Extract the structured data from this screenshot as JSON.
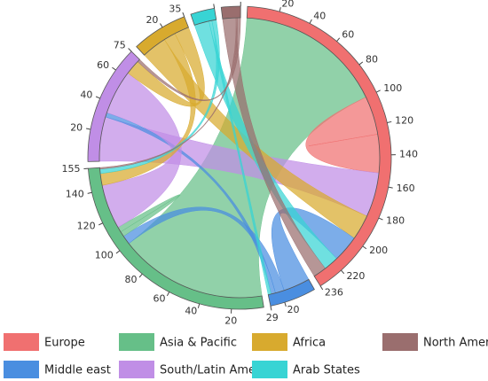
{
  "chart_data": {
    "type": "chord",
    "nodes": [
      {
        "name": "Europe",
        "color": "#f07070",
        "total": 236,
        "ticks": [
          20,
          40,
          60,
          80,
          100,
          120,
          140,
          160,
          180,
          200,
          220
        ]
      },
      {
        "name": "Middle east",
        "color": "#4a8ee0",
        "total": 29,
        "ticks": [
          20
        ]
      },
      {
        "name": "Asia & Pacific",
        "color": "#66bf88",
        "total": 155,
        "ticks": [
          20,
          40,
          60,
          80,
          100,
          120,
          140
        ]
      },
      {
        "name": "South/Latin America",
        "color": "#c08ee6",
        "total": 75,
        "ticks": [
          20,
          40,
          60
        ]
      },
      {
        "name": "Africa",
        "color": "#d8aa2e",
        "total": 35,
        "ticks": [
          20
        ]
      },
      {
        "name": "Arab States",
        "color": "#38d4d4",
        "total": 15,
        "ticks": []
      },
      {
        "name": "North America",
        "color": "#9a6e6e",
        "total": 12,
        "ticks": []
      }
    ],
    "links": [
      {
        "source": "Asia & Pacific",
        "target": "Europe",
        "value": 100
      },
      {
        "source": "Europe",
        "target": "Europe",
        "value": 26
      },
      {
        "source": "South/Latin America",
        "target": "Europe",
        "value": 30
      },
      {
        "source": "Africa",
        "target": "Europe",
        "value": 17
      },
      {
        "source": "Middle east",
        "target": "Europe",
        "value": 18
      },
      {
        "source": "Arab States",
        "target": "Europe",
        "value": 10
      },
      {
        "source": "North America",
        "target": "Europe",
        "value": 9
      },
      {
        "source": "Middle east",
        "target": "Asia & Pacific",
        "value": 6
      },
      {
        "source": "Middle east",
        "target": "South/Latin America",
        "value": 3
      },
      {
        "source": "Arab States",
        "target": "Middle east",
        "value": 2
      },
      {
        "source": "Asia & Pacific",
        "target": "Asia & Pacific",
        "value": 3.5
      },
      {
        "source": "South/Latin America",
        "target": "Asia & Pacific",
        "value": 30
      },
      {
        "source": "Africa",
        "target": "Asia & Pacific",
        "value": 8
      },
      {
        "source": "Arab States",
        "target": "Asia & Pacific",
        "value": 3
      },
      {
        "source": "North America",
        "target": "Asia & Pacific",
        "value": 1
      },
      {
        "source": "Africa",
        "target": "South/Latin America",
        "value": 10
      },
      {
        "source": "North America",
        "target": "South/Latin America",
        "value": 2
      }
    ]
  }
}
